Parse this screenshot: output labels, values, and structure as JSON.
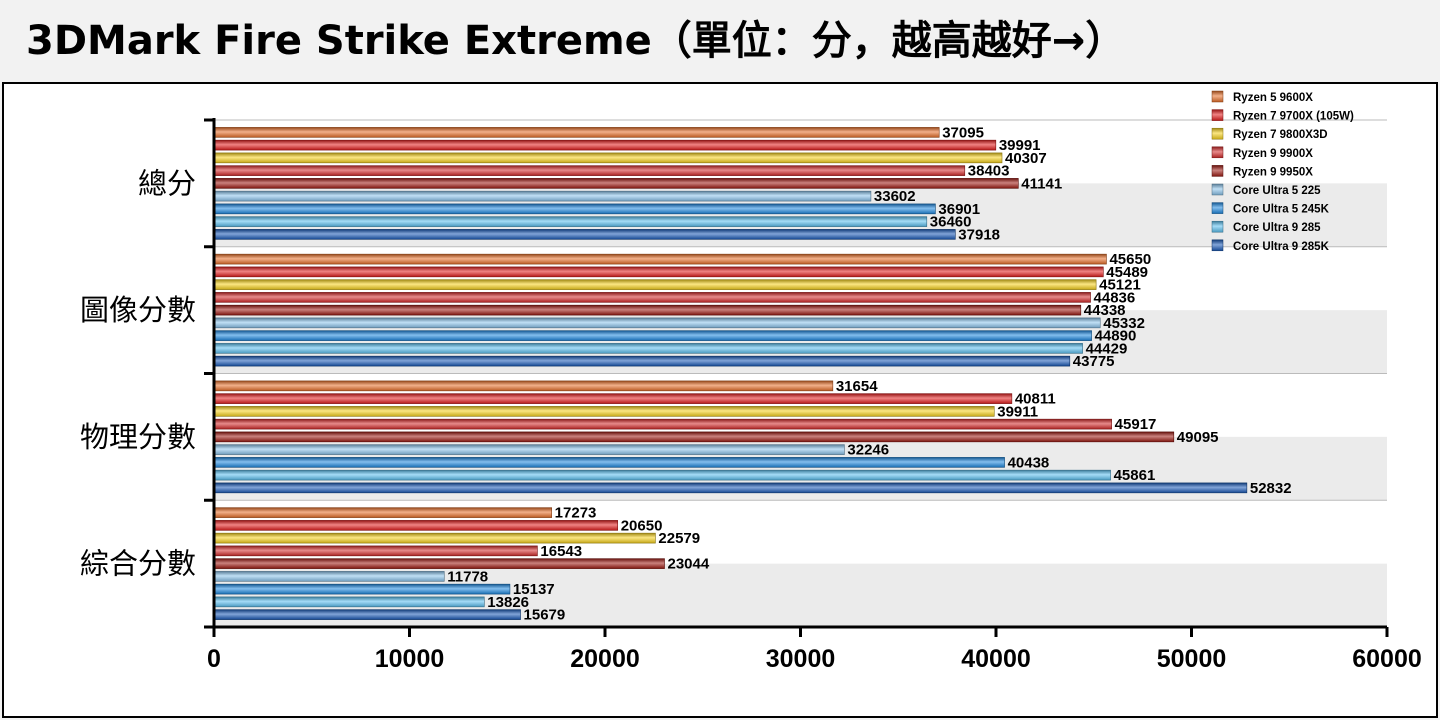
{
  "title": "3DMark Fire Strike Extreme（單位：分，越高越好→）",
  "chart_data": {
    "type": "bar",
    "orientation": "horizontal",
    "title": "3DMark Fire Strike Extreme（單位：分，越高越好→）",
    "categories": [
      "總分",
      "圖像分數",
      "物理分數",
      "綜合分數"
    ],
    "xlim": [
      0,
      60000
    ],
    "xticks": [
      0,
      10000,
      20000,
      30000,
      40000,
      50000,
      60000
    ],
    "legend_position": "top-right",
    "series": [
      {
        "name": "Ryzen 5 9600X",
        "color": "#e8702a",
        "values": [
          37095,
          45650,
          31654,
          17273
        ]
      },
      {
        "name": "Ryzen 7 9700X (105W)",
        "color": "#e41e1e",
        "values": [
          39991,
          45489,
          40811,
          20650
        ]
      },
      {
        "name": "Ryzen 7 9800X3D",
        "color": "#f8d21e",
        "values": [
          40307,
          45121,
          39911,
          22579
        ]
      },
      {
        "name": "Ryzen 9 9900X",
        "color": "#d42a2a",
        "values": [
          38403,
          44836,
          45917,
          16543
        ]
      },
      {
        "name": "Ryzen 9 9950X",
        "color": "#9e1a12",
        "values": [
          41141,
          44338,
          49095,
          23044
        ]
      },
      {
        "name": "Core Ultra 5 225",
        "color": "#8cc4ec",
        "values": [
          33602,
          45332,
          32246,
          11778
        ]
      },
      {
        "name": "Core Ultra 5 245K",
        "color": "#1e88e0",
        "values": [
          36901,
          44890,
          40438,
          15137
        ]
      },
      {
        "name": "Core Ultra 9 285",
        "color": "#5cc0f0",
        "values": [
          36460,
          44429,
          45861,
          13826
        ]
      },
      {
        "name": "Core Ultra 9 285K",
        "color": "#1a5ab8",
        "values": [
          37918,
          43775,
          52832,
          15679
        ]
      }
    ]
  }
}
